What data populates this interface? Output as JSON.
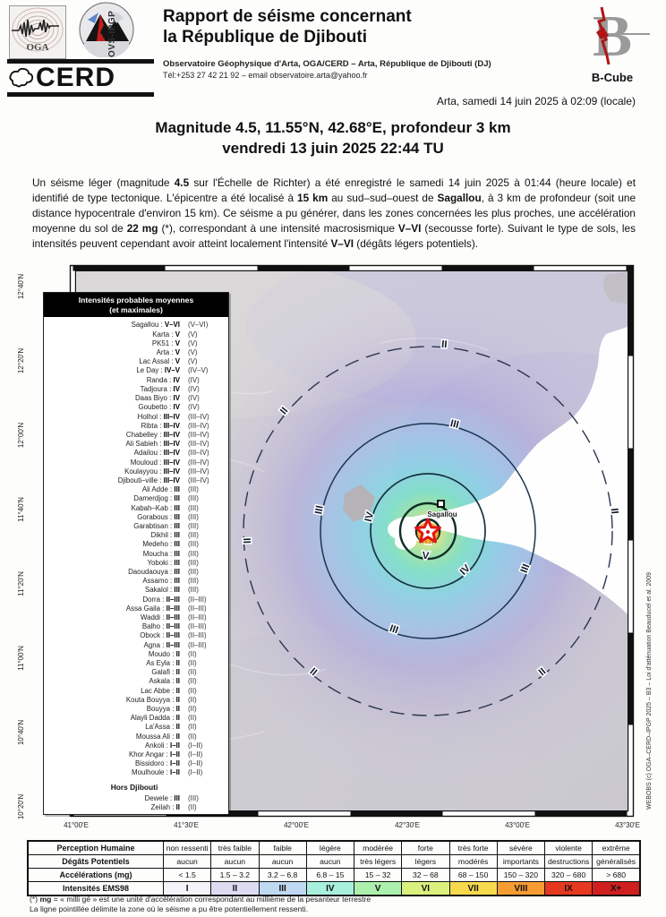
{
  "header": {
    "title_line1": "Rapport de séisme concernant",
    "title_line2": "la République de Djibouti",
    "org_line": "Observatoire Géophysique d'Arta, OGA/CERD – Arta, République de Djibouti (DJ)",
    "contact_line": "Tél:+253 27 42 21 92 – email observatoire.arta@yahoo.fr",
    "logo_oga": "OGA",
    "logo_ovs": "OVS-IPGP",
    "logo_cerd": "CERD",
    "logo_bcube": "B-Cube",
    "dateline": "Arta, samedi 14 juin 2025 à 02:09 (locale)"
  },
  "event": {
    "headline_line1": "Magnitude 4.5, 11.55°N, 42.68°E, profondeur 3 km",
    "headline_line2": "vendredi 13 juin 2025 22:44 TU"
  },
  "intro": {
    "s0": "Un séisme léger (magnitude ",
    "s1": "4.5",
    "s2": " sur l'Échelle de Richter) a été enregistré le samedi 14 juin 2025 à 01:44 (heure locale) et identifié de type tectonique. L'épicentre a été localisé à ",
    "s3": "15 km",
    "s4": " au sud–sud–ouest de ",
    "s5": "Sagallou",
    "s6": ", à 3 km de profondeur (soit une distance hypocentrale d'environ 15 km). Ce séisme a pu générer, dans les zones concernées les plus proches, une accélération moyenne du sol de ",
    "s7": "22 mg",
    "s8": " (*), correspondant à une intensité macrosismique ",
    "s9": "V–VI",
    "s10": " (secousse forte). Suivant le type de sols, les intensités peuvent cependant avoir atteint localement l'intensité ",
    "s11": "V–VI",
    "s12": " (dégâts légers potentiels)."
  },
  "map": {
    "legend_title1": "Intensités probables moyennes",
    "legend_title2": "(et maximales)",
    "hors_title": "Hors Djibouti",
    "places": [
      {
        "name": "Sagallou",
        "value": "V–VI",
        "max": "(V–VI)"
      },
      {
        "name": "Karta",
        "value": "V",
        "max": "(V)"
      },
      {
        "name": "PK51",
        "value": "V",
        "max": "(V)"
      },
      {
        "name": "Arta",
        "value": "V",
        "max": "(V)"
      },
      {
        "name": "Lac Assal",
        "value": "V",
        "max": "(V)"
      },
      {
        "name": "Le Day",
        "value": "IV–V",
        "max": "(IV–V)"
      },
      {
        "name": "Randa",
        "value": "IV",
        "max": "(IV)"
      },
      {
        "name": "Tadjoura",
        "value": "IV",
        "max": "(IV)"
      },
      {
        "name": "Daas Biyo",
        "value": "IV",
        "max": "(IV)"
      },
      {
        "name": "Goubetto",
        "value": "IV",
        "max": "(IV)"
      },
      {
        "name": "Holhol",
        "value": "III–IV",
        "max": "(III–IV)"
      },
      {
        "name": "Ribta",
        "value": "III–IV",
        "max": "(III–IV)"
      },
      {
        "name": "Chabelley",
        "value": "III–IV",
        "max": "(III–IV)"
      },
      {
        "name": "Ali Sabieh",
        "value": "III–IV",
        "max": "(III–IV)"
      },
      {
        "name": "Adailou",
        "value": "III–IV",
        "max": "(III–IV)"
      },
      {
        "name": "Mouloud",
        "value": "III–IV",
        "max": "(III–IV)"
      },
      {
        "name": "Koulayyou",
        "value": "III–IV",
        "max": "(III–IV)"
      },
      {
        "name": "Djibouti–ville",
        "value": "III–IV",
        "max": "(III–IV)"
      },
      {
        "name": "Ali Adde",
        "value": "III",
        "max": "(III)"
      },
      {
        "name": "Damerdjog",
        "value": "III",
        "max": "(III)"
      },
      {
        "name": "Kabah–Kab",
        "value": "III",
        "max": "(III)"
      },
      {
        "name": "Gorabous",
        "value": "III",
        "max": "(III)"
      },
      {
        "name": "Garabtisan",
        "value": "III",
        "max": "(III)"
      },
      {
        "name": "Dikhil",
        "value": "III",
        "max": "(III)"
      },
      {
        "name": "Medeho",
        "value": "III",
        "max": "(III)"
      },
      {
        "name": "Moucha",
        "value": "III",
        "max": "(III)"
      },
      {
        "name": "Yoboki",
        "value": "III",
        "max": "(III)"
      },
      {
        "name": "Daoudaouya",
        "value": "III",
        "max": "(III)"
      },
      {
        "name": "Assamo",
        "value": "III",
        "max": "(III)"
      },
      {
        "name": "Sakalol",
        "value": "III",
        "max": "(III)"
      },
      {
        "name": "Dorra",
        "value": "II–III",
        "max": "(II–III)"
      },
      {
        "name": "Assa Gaila",
        "value": "II–III",
        "max": "(II–III)"
      },
      {
        "name": "Waddi",
        "value": "II–III",
        "max": "(II–III)"
      },
      {
        "name": "Balho",
        "value": "II–III",
        "max": "(II–III)"
      },
      {
        "name": "Obock",
        "value": "II–III",
        "max": "(II–III)"
      },
      {
        "name": "Agna",
        "value": "II–III",
        "max": "(II–III)"
      },
      {
        "name": "Moudo",
        "value": "II",
        "max": "(II)"
      },
      {
        "name": "As Eyla",
        "value": "II",
        "max": "(II)"
      },
      {
        "name": "Galafi",
        "value": "II",
        "max": "(II)"
      },
      {
        "name": "Askala",
        "value": "II",
        "max": "(II)"
      },
      {
        "name": "Lac Abbe",
        "value": "II",
        "max": "(II)"
      },
      {
        "name": "Kouta Bouyya",
        "value": "II",
        "max": "(II)"
      },
      {
        "name": "Bouyya",
        "value": "II",
        "max": "(II)"
      },
      {
        "name": "Alayli Dadda",
        "value": "II",
        "max": "(II)"
      },
      {
        "name": "La'Assa",
        "value": "II",
        "max": "(II)"
      },
      {
        "name": "Moussa Ali",
        "value": "II",
        "max": "(II)"
      },
      {
        "name": "Ankoli",
        "value": "I–II",
        "max": "(I–II)"
      },
      {
        "name": "Khor Angar",
        "value": "I–II",
        "max": "(I–II)"
      },
      {
        "name": "Bissidoro",
        "value": "I–II",
        "max": "(I–II)"
      },
      {
        "name": "Moulhoule",
        "value": "I–II",
        "max": "(I–II)"
      }
    ],
    "hors_places": [
      {
        "name": "Dewele",
        "value": "III",
        "max": "(III)"
      },
      {
        "name": "Zeilah",
        "value": "II",
        "max": "(II)"
      }
    ],
    "lat_labels": [
      "12°40'N",
      "12°20'N",
      "12°00'N",
      "11°40'N",
      "11°20'N",
      "11°00'N",
      "10°40'N",
      "10°20'N"
    ],
    "lon_labels": [
      "41°00'E",
      "41°30'E",
      "42°00'E",
      "42°30'E",
      "43°00'E",
      "43°30'E"
    ],
    "rings": [
      "II",
      "III",
      "IV",
      "V",
      "VI"
    ],
    "epicenter_label": "Sagallou",
    "credit": "WEBOBS (c) OGA–CERD–IPGP 2025 – B3 – Loi d'atténuation Beauducel et al. 2009"
  },
  "scale_table": {
    "row_headers": [
      "Perception Humaine",
      "Dégâts Potentiels",
      "Accélérations (mg)",
      "Intensités EMS98"
    ],
    "perception": [
      "non ressenti",
      "très faible",
      "faible",
      "légère",
      "modérée",
      "forte",
      "très forte",
      "sévère",
      "violente",
      "extrême"
    ],
    "degats": [
      "aucun",
      "aucun",
      "aucun",
      "aucun",
      "très légers",
      "légers",
      "modérés",
      "importants",
      "destructions",
      "généralisés"
    ],
    "accelerations": [
      "< 1.5",
      "1.5 – 3.2",
      "3.2 – 6.8",
      "6.8 – 15",
      "15 – 32",
      "32 – 68",
      "68 – 150",
      "150 – 320",
      "320 – 680",
      "> 680"
    ],
    "intensites": [
      {
        "label": "I",
        "color": "#f4f3fa"
      },
      {
        "label": "II",
        "color": "#dedcf2"
      },
      {
        "label": "III",
        "color": "#bfd9f2"
      },
      {
        "label": "IV",
        "color": "#a9f0dc"
      },
      {
        "label": "V",
        "color": "#adf0ad"
      },
      {
        "label": "VI",
        "color": "#d9f07d"
      },
      {
        "label": "VII",
        "color": "#f7d94d"
      },
      {
        "label": "VIII",
        "color": "#f79c33"
      },
      {
        "label": "IX",
        "color": "#e6391f"
      },
      {
        "label": "X+",
        "color": "#cf1f1f"
      }
    ]
  },
  "footnotes": {
    "f1a": "(*) ",
    "f1b": "mg",
    "f1c": " = « milli gé » est une unité d'accélération correspondant au millième de la pesanteur terrestre",
    "f2": "La ligne pointillée délimite la zone où le séisme a pu être potentiellement ressenti."
  }
}
